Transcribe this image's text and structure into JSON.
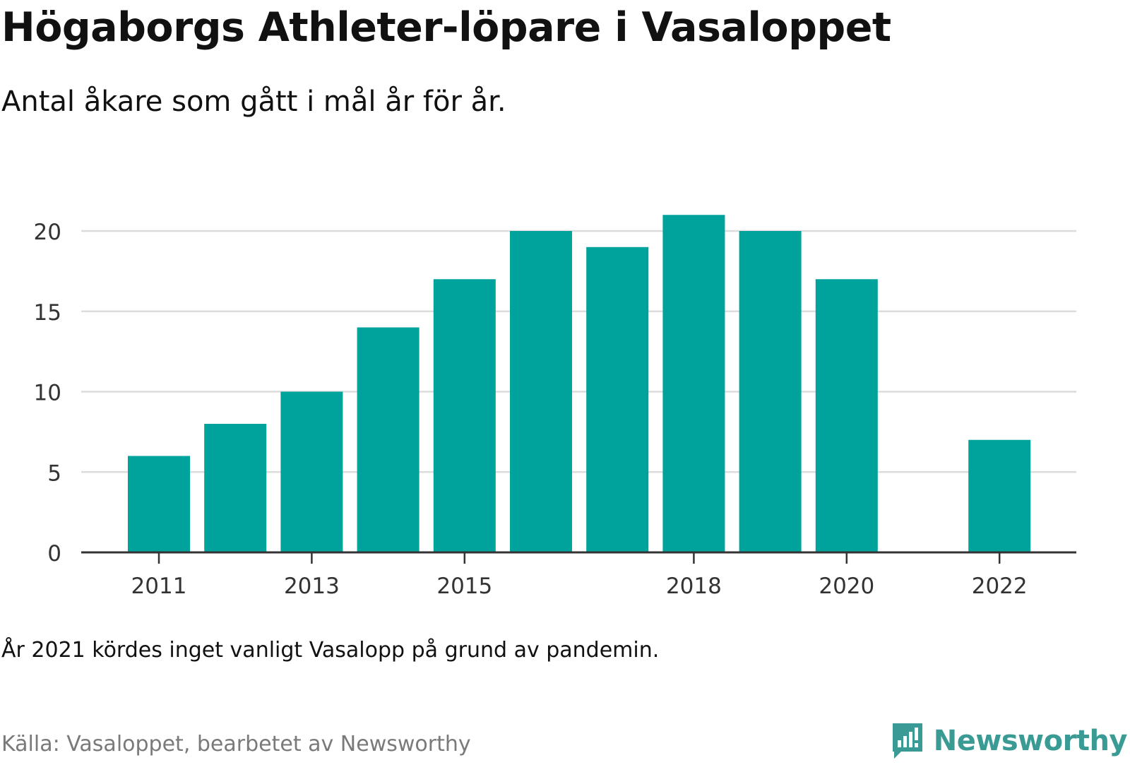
{
  "header": {
    "title": "Högaborgs Athleter-löpare i Vasaloppet",
    "subtitle": "Antal åkare som gått i mål år för år."
  },
  "footer": {
    "note": "År 2021 kördes inget vanligt Vasalopp på grund av pandemin.",
    "source": "Källa: Vasaloppet, bearbetet av Newsworthy",
    "logo_text": "Newsworthy"
  },
  "colors": {
    "bar": "#00a39b",
    "grid": "#dcdcdc",
    "axis": "#333333",
    "tick_text": "#333333",
    "brand": "#3a9a94"
  },
  "chart_data": {
    "type": "bar",
    "categories": [
      "2011",
      "2012",
      "2013",
      "2014",
      "2015",
      "2016",
      "2017",
      "2018",
      "2019",
      "2020",
      "2021",
      "2022"
    ],
    "values": [
      6,
      8,
      10,
      14,
      17,
      20,
      19,
      21,
      20,
      17,
      null,
      7
    ],
    "x_tick_labels": [
      "2011",
      "2013",
      "2015",
      "2018",
      "2020",
      "2022"
    ],
    "y_ticks": [
      0,
      5,
      10,
      15,
      20
    ],
    "ylim": [
      0,
      22
    ],
    "title": "Högaborgs Athleter-löpare i Vasaloppet",
    "xlabel": "",
    "ylabel": "",
    "grid": true,
    "legend": false
  }
}
